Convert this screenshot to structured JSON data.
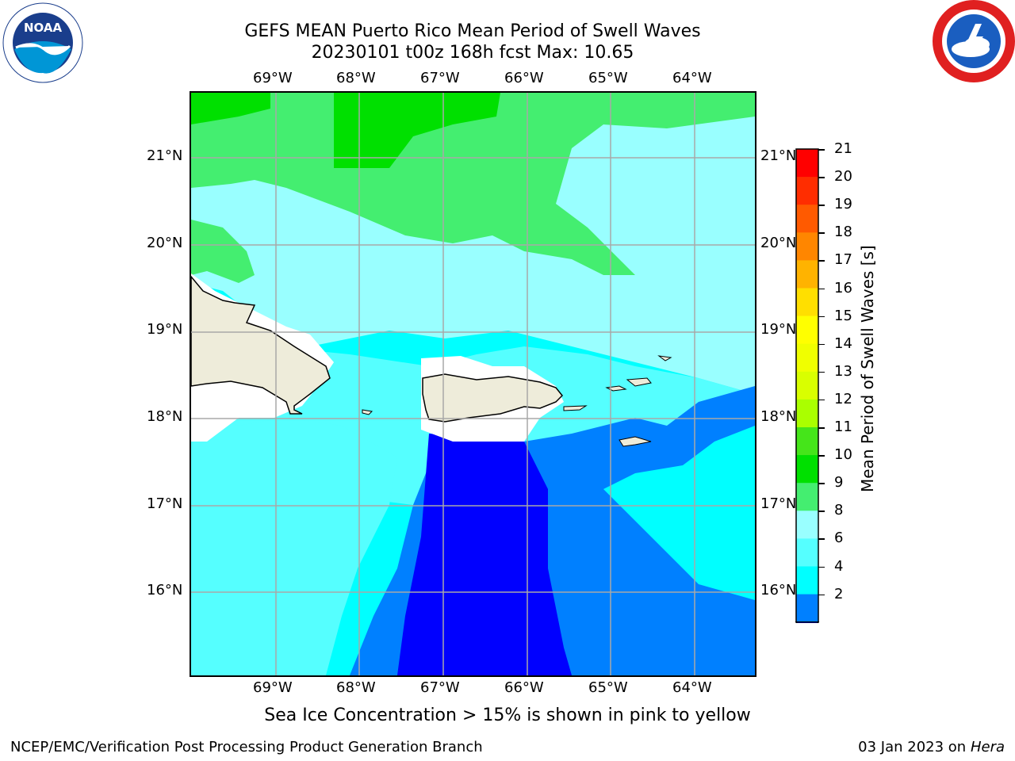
{
  "title": {
    "line1": "GEFS MEAN Puerto Rico Mean Period of Swell Waves",
    "line2": "20230101 t00z 168h fcst   Max: 10.65"
  },
  "logos": {
    "left": {
      "icon": "noaa-logo",
      "text": "NOAA"
    },
    "right": {
      "icon": "nws-logo"
    }
  },
  "map": {
    "lon_ticks": [
      "69°W",
      "68°W",
      "67°W",
      "66°W",
      "65°W",
      "64°W"
    ],
    "lat_ticks": [
      "21°N",
      "20°N",
      "19°N",
      "18°N",
      "17°N",
      "16°N"
    ],
    "grid": true,
    "land_color": "#eeecda"
  },
  "colorbar": {
    "label": "Mean Period of Swell Waves [s]",
    "ticks": [
      "21",
      "20",
      "19",
      "18",
      "17",
      "16",
      "15",
      "14",
      "13",
      "12",
      "11",
      "10",
      "9",
      "8",
      "6",
      "4",
      "2"
    ],
    "colors": [
      "#ff0000",
      "#ff2d00",
      "#ff5a00",
      "#ff8600",
      "#ffb300",
      "#ffdf00",
      "#ffff00",
      "#f0ff00",
      "#d9ff00",
      "#aaff00",
      "#45e51a",
      "#00e000",
      "#44ee70",
      "#99ffff",
      "#55ffff",
      "#00ffff",
      "#0080ff"
    ],
    "extend_color": "#0000ff"
  },
  "note": "Sea Ice Concentration > 15% is shown in pink to yellow",
  "footer": {
    "left": "NCEP/EMC/Verification Post Processing Product Generation Branch",
    "right_date": "03 Jan 2023 on ",
    "right_host": "Hera"
  }
}
